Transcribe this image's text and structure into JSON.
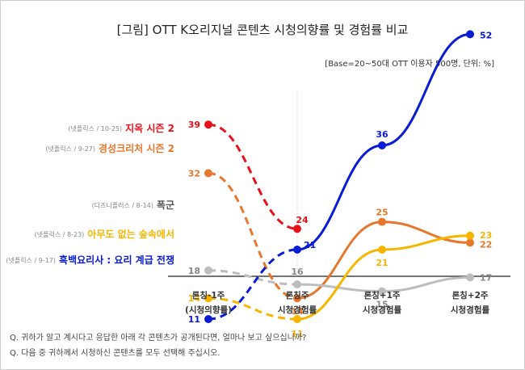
{
  "title": "[그림] OTT K오리지널 콘텐츠 시청의향률 및 경험률 비교",
  "subtitle": "[Base=20~50대 OTT 이용자 500명, 단위: %]",
  "footnotes": [
    "Q. 귀하가 알고 계시다고 응답한 아래 각 콘텐츠가 공개된다면, 얼마나 보고 싶으십니까?",
    "Q. 다음 중 귀하께서 시청하신 콘텐츠를 모두 선택해 주십시오."
  ],
  "chart_data": {
    "type": "line",
    "categories": [
      [
        "론칭-1주",
        "(시청의향률)"
      ],
      [
        "론칭주",
        "시청경험률"
      ],
      [
        "론칭+1주",
        "시청경험률"
      ],
      [
        "론칭+2주",
        "시청경험률"
      ]
    ],
    "grid": false,
    "legend": "left labels",
    "series": [
      {
        "name": "지옥 시즌 2",
        "meta": "(넷플릭스 / 10-25)",
        "color": "#e8101b",
        "values": [
          39,
          24,
          null,
          null
        ]
      },
      {
        "name": "경성크리처 시즌 2",
        "meta": "(넷플릭스 / 9-27)",
        "color": "#e8772e",
        "values": [
          32,
          14,
          25,
          22
        ]
      },
      {
        "name": "폭군",
        "meta": "(디즈니플러스 / 8-14)",
        "color": "#bdbdbd",
        "values": [
          18,
          16,
          15,
          17
        ]
      },
      {
        "name": "아무도 없는 숲속에서",
        "meta": "(넷플릭스 / 8-23)",
        "color": "#f7b500",
        "values": [
          14,
          11,
          21,
          23
        ]
      },
      {
        "name": "흑백요리사 : 요리 계급 전쟁",
        "meta": "(넷플릭스 / 9-17)",
        "color": "#0a1bd6",
        "values": [
          11,
          21,
          36,
          52
        ]
      }
    ]
  }
}
